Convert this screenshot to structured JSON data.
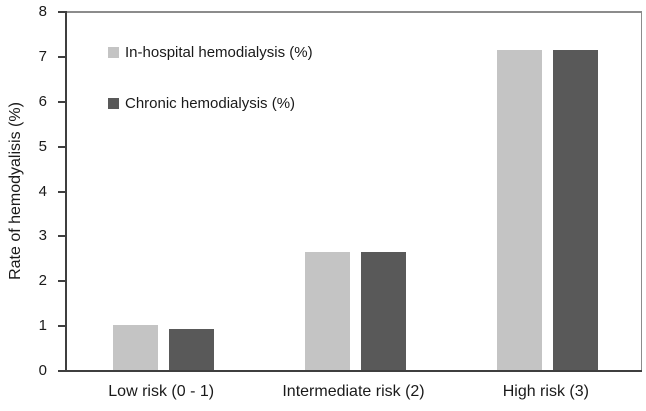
{
  "chart_data": {
    "type": "bar",
    "title": "",
    "ylabel": "Rate of hemodyalisis (%)",
    "xlabel": "",
    "ylim": [
      0,
      8
    ],
    "ytick_labels": [
      "0",
      "1",
      "2",
      "3",
      "4",
      "5",
      "6",
      "7",
      "8"
    ],
    "categories": [
      "Low risk (0 - 1)",
      "Intermediate risk (2)",
      "High risk (3)"
    ],
    "series": [
      {
        "name": "In-hospital hemodialysis (%)",
        "color": "#c4c4c4",
        "values": [
          1.02,
          2.65,
          7.15
        ]
      },
      {
        "name": "Chronic hemodialysis (%)",
        "color": "#595959",
        "values": [
          0.93,
          2.65,
          7.15
        ]
      }
    ],
    "legend_position": "inside-top-left",
    "grid": false,
    "colors": {
      "axis": "#3f3f3f",
      "plot_border": "#8c8c8c",
      "text": "#1a1a1a",
      "background": "#ffffff"
    }
  }
}
